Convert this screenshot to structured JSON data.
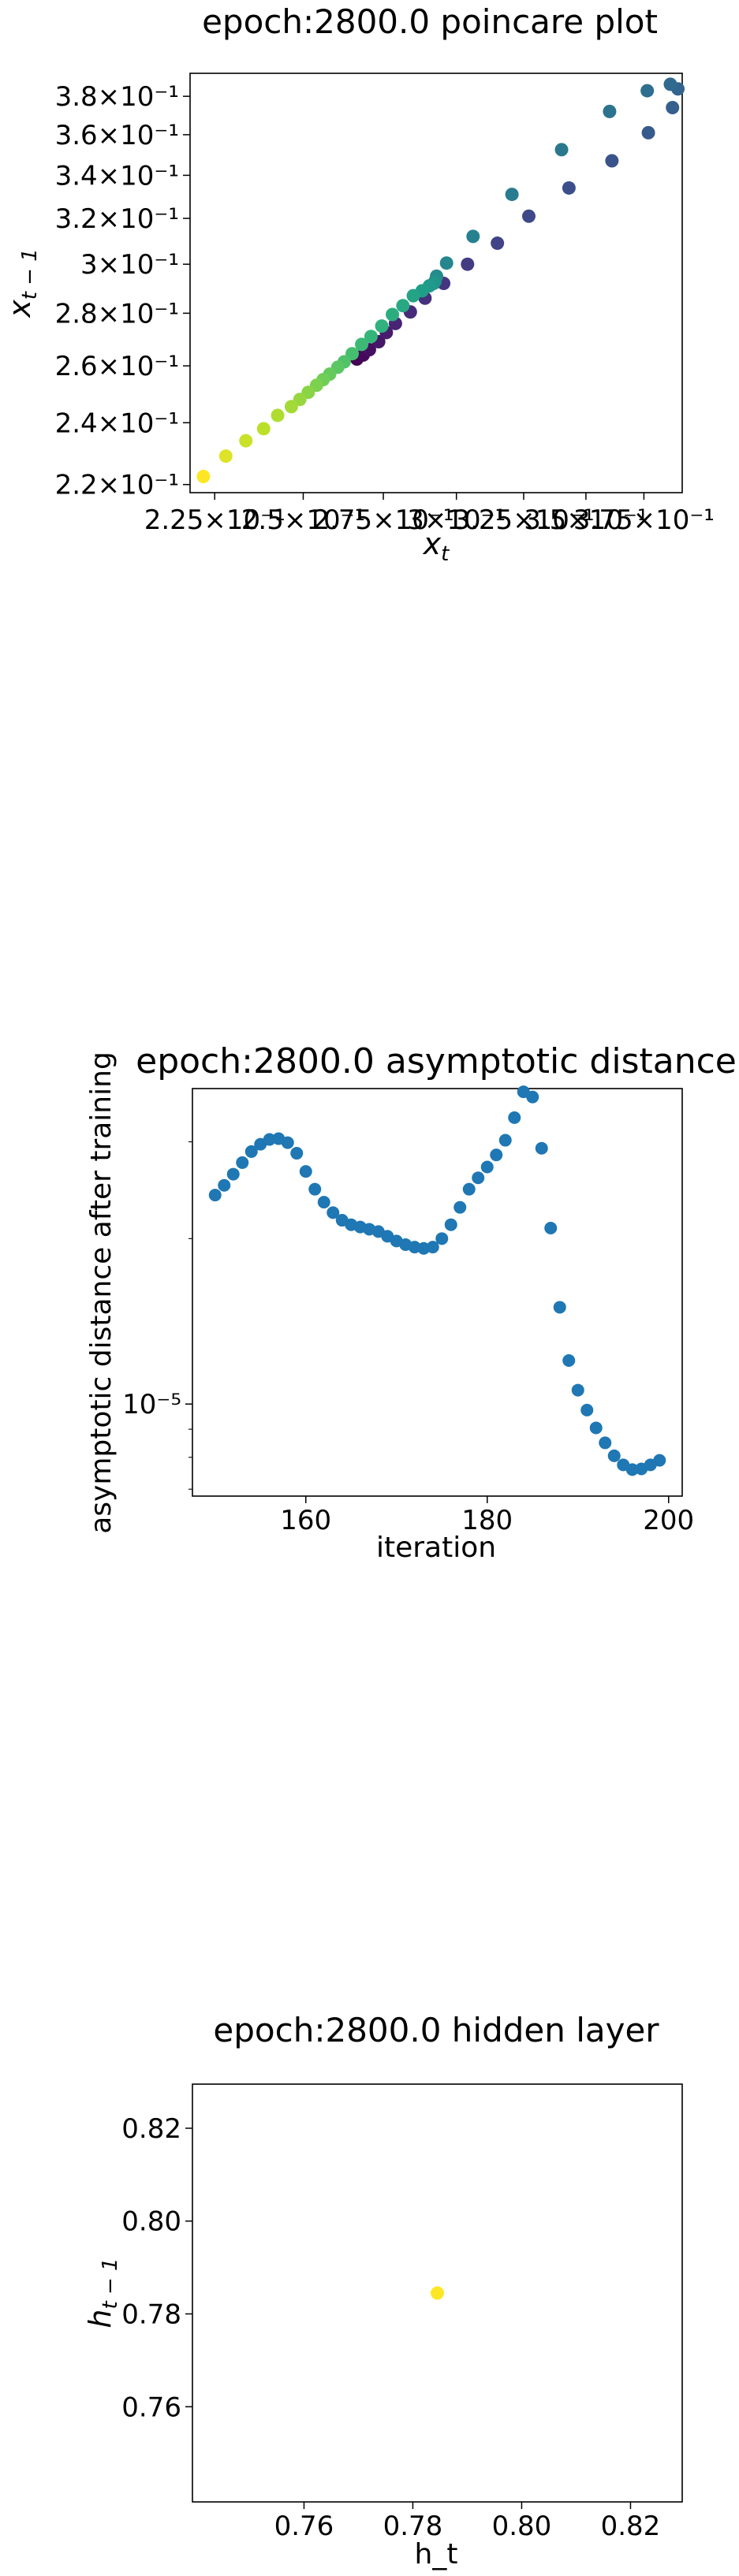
{
  "chart_data": [
    {
      "type": "scatter",
      "title": "epoch:2800.0 poincare plot",
      "xlabel": "x_t",
      "ylabel": "x_{t-1}",
      "xscale": "log",
      "yscale": "log",
      "xlim": [
        0.2185,
        0.3925
      ],
      "ylim": [
        0.2175,
        0.3925
      ],
      "x_ticks": [
        {
          "value": 0.225,
          "label": "2.25×10⁻¹"
        },
        {
          "value": 0.25,
          "label": "2.5×10⁻¹"
        },
        {
          "value": 0.275,
          "label": "2.75×10⁻¹"
        },
        {
          "value": 0.3,
          "label": "3×10⁻¹"
        },
        {
          "value": 0.325,
          "label": "3.25×10⁻¹"
        },
        {
          "value": 0.35,
          "label": "3.5×10⁻¹"
        },
        {
          "value": 0.375,
          "label": "3.75×10⁻¹"
        }
      ],
      "y_ticks": [
        {
          "value": 0.22,
          "label": "2.2×10⁻¹"
        },
        {
          "value": 0.24,
          "label": "2.4×10⁻¹"
        },
        {
          "value": 0.26,
          "label": "2.6×10⁻¹"
        },
        {
          "value": 0.28,
          "label": "2.8×10⁻¹"
        },
        {
          "value": 0.3,
          "label": "3×10⁻¹"
        },
        {
          "value": 0.32,
          "label": "3.2×10⁻¹"
        },
        {
          "value": 0.34,
          "label": "3.4×10⁻¹"
        },
        {
          "value": 0.36,
          "label": "3.6×10⁻¹"
        },
        {
          "value": 0.38,
          "label": "3.8×10⁻¹"
        }
      ],
      "colormap": "viridis",
      "points": [
        {
          "x": 0.2665,
          "y": 0.2625,
          "c": 0.0
        },
        {
          "x": 0.2685,
          "y": 0.264,
          "c": 0.02
        },
        {
          "x": 0.2705,
          "y": 0.266,
          "c": 0.04
        },
        {
          "x": 0.2735,
          "y": 0.269,
          "c": 0.06
        },
        {
          "x": 0.276,
          "y": 0.2725,
          "c": 0.08
        },
        {
          "x": 0.279,
          "y": 0.276,
          "c": 0.1
        },
        {
          "x": 0.284,
          "y": 0.2805,
          "c": 0.12
        },
        {
          "x": 0.289,
          "y": 0.286,
          "c": 0.14
        },
        {
          "x": 0.2955,
          "y": 0.292,
          "c": 0.16
        },
        {
          "x": 0.304,
          "y": 0.3,
          "c": 0.18
        },
        {
          "x": 0.315,
          "y": 0.309,
          "c": 0.2
        },
        {
          "x": 0.327,
          "y": 0.321,
          "c": 0.22
        },
        {
          "x": 0.343,
          "y": 0.334,
          "c": 0.24
        },
        {
          "x": 0.361,
          "y": 0.347,
          "c": 0.26
        },
        {
          "x": 0.377,
          "y": 0.361,
          "c": 0.28
        },
        {
          "x": 0.388,
          "y": 0.374,
          "c": 0.3
        },
        {
          "x": 0.3905,
          "y": 0.384,
          "c": 0.32
        },
        {
          "x": 0.387,
          "y": 0.3865,
          "c": 0.34
        },
        {
          "x": 0.3765,
          "y": 0.383,
          "c": 0.36
        },
        {
          "x": 0.36,
          "y": 0.372,
          "c": 0.38
        },
        {
          "x": 0.34,
          "y": 0.3525,
          "c": 0.4
        },
        {
          "x": 0.3205,
          "y": 0.331,
          "c": 0.42
        },
        {
          "x": 0.306,
          "y": 0.312,
          "c": 0.44
        },
        {
          "x": 0.2965,
          "y": 0.3005,
          "c": 0.46
        },
        {
          "x": 0.293,
          "y": 0.295,
          "c": 0.48
        },
        {
          "x": 0.2925,
          "y": 0.293,
          "c": 0.5
        },
        {
          "x": 0.292,
          "y": 0.292,
          "c": 0.52
        },
        {
          "x": 0.2905,
          "y": 0.291,
          "c": 0.54
        },
        {
          "x": 0.288,
          "y": 0.289,
          "c": 0.56
        },
        {
          "x": 0.285,
          "y": 0.287,
          "c": 0.58
        },
        {
          "x": 0.2815,
          "y": 0.283,
          "c": 0.6
        },
        {
          "x": 0.278,
          "y": 0.2795,
          "c": 0.62
        },
        {
          "x": 0.2745,
          "y": 0.275,
          "c": 0.64
        },
        {
          "x": 0.271,
          "y": 0.271,
          "c": 0.66
        },
        {
          "x": 0.268,
          "y": 0.268,
          "c": 0.68
        },
        {
          "x": 0.265,
          "y": 0.2645,
          "c": 0.7
        },
        {
          "x": 0.2625,
          "y": 0.2615,
          "c": 0.72
        },
        {
          "x": 0.2605,
          "y": 0.2595,
          "c": 0.74
        },
        {
          "x": 0.258,
          "y": 0.257,
          "c": 0.76
        },
        {
          "x": 0.256,
          "y": 0.255,
          "c": 0.78
        },
        {
          "x": 0.254,
          "y": 0.253,
          "c": 0.8
        },
        {
          "x": 0.2515,
          "y": 0.2505,
          "c": 0.82
        },
        {
          "x": 0.249,
          "y": 0.248,
          "c": 0.84
        },
        {
          "x": 0.2465,
          "y": 0.2455,
          "c": 0.86
        },
        {
          "x": 0.2425,
          "y": 0.2425,
          "c": 0.88
        },
        {
          "x": 0.2385,
          "y": 0.238,
          "c": 0.9
        },
        {
          "x": 0.2335,
          "y": 0.234,
          "c": 0.92
        },
        {
          "x": 0.228,
          "y": 0.229,
          "c": 0.95
        },
        {
          "x": 0.222,
          "y": 0.2225,
          "c": 1.0
        }
      ]
    },
    {
      "type": "scatter",
      "title": "epoch:2800.0 asymptotic distance",
      "xlabel": "iteration",
      "ylabel": "asymptotic distance after training",
      "yscale": "log",
      "xlim": [
        147.5,
        201.5
      ],
      "ylim": [
        6.8e-06,
        3.75e-05
      ],
      "color": "#1f77b4",
      "x_ticks": [
        {
          "value": 160,
          "label": "160"
        },
        {
          "value": 180,
          "label": "180"
        },
        {
          "value": 200,
          "label": "200"
        }
      ],
      "y_ticks": [
        {
          "value": 1e-05,
          "label": "10⁻⁵"
        }
      ],
      "y_minor_ticks": [
        7e-06,
        8e-06,
        9e-06,
        2e-05,
        3e-05
      ],
      "x": [
        150,
        151,
        152,
        153,
        154,
        155,
        156,
        157,
        158,
        159,
        160,
        161,
        162,
        163,
        164,
        165,
        166,
        167,
        168,
        169,
        170,
        171,
        172,
        173,
        174,
        175,
        176,
        177,
        178,
        179,
        180,
        181,
        182,
        183,
        184,
        185,
        186,
        187,
        188,
        189,
        190,
        191,
        192,
        193,
        194,
        195,
        196,
        197,
        198,
        199
      ],
      "y": [
        2.4e-05,
        2.5e-05,
        2.62e-05,
        2.75e-05,
        2.88e-05,
        2.97e-05,
        3.03e-05,
        3.04e-05,
        2.99e-05,
        2.86e-05,
        2.65e-05,
        2.46e-05,
        2.33e-05,
        2.23e-05,
        2.16e-05,
        2.12e-05,
        2.1e-05,
        2.08e-05,
        2.06e-05,
        2.02e-05,
        1.98e-05,
        1.95e-05,
        1.93e-05,
        1.92e-05,
        1.93e-05,
        2e-05,
        2.12e-05,
        2.28e-05,
        2.46e-05,
        2.58e-05,
        2.7e-05,
        2.84e-05,
        3.02e-05,
        3.32e-05,
        3.7e-05,
        3.62e-05,
        2.92e-05,
        2.09e-05,
        1.5e-05,
        1.2e-05,
        1.06e-05,
        9.75e-06,
        9.05e-06,
        8.5e-06,
        8.05e-06,
        7.75e-06,
        7.6e-06,
        7.62e-06,
        7.75e-06,
        7.9e-06
      ]
    },
    {
      "type": "scatter",
      "title": "epoch:2800.0 hidden layer",
      "xlabel": "h_t",
      "ylabel": "h_{t-1}",
      "xlim": [
        0.7395,
        0.8295
      ],
      "ylim": [
        0.7395,
        0.8295
      ],
      "x_ticks": [
        {
          "value": 0.76,
          "label": "0.76"
        },
        {
          "value": 0.78,
          "label": "0.78"
        },
        {
          "value": 0.8,
          "label": "0.80"
        },
        {
          "value": 0.82,
          "label": "0.82"
        }
      ],
      "y_ticks": [
        {
          "value": 0.76,
          "label": "0.76"
        },
        {
          "value": 0.78,
          "label": "0.78"
        },
        {
          "value": 0.8,
          "label": "0.80"
        },
        {
          "value": 0.82,
          "label": "0.82"
        }
      ],
      "points": [
        {
          "x": 0.7845,
          "y": 0.7845,
          "color": "#fde725"
        }
      ]
    }
  ]
}
